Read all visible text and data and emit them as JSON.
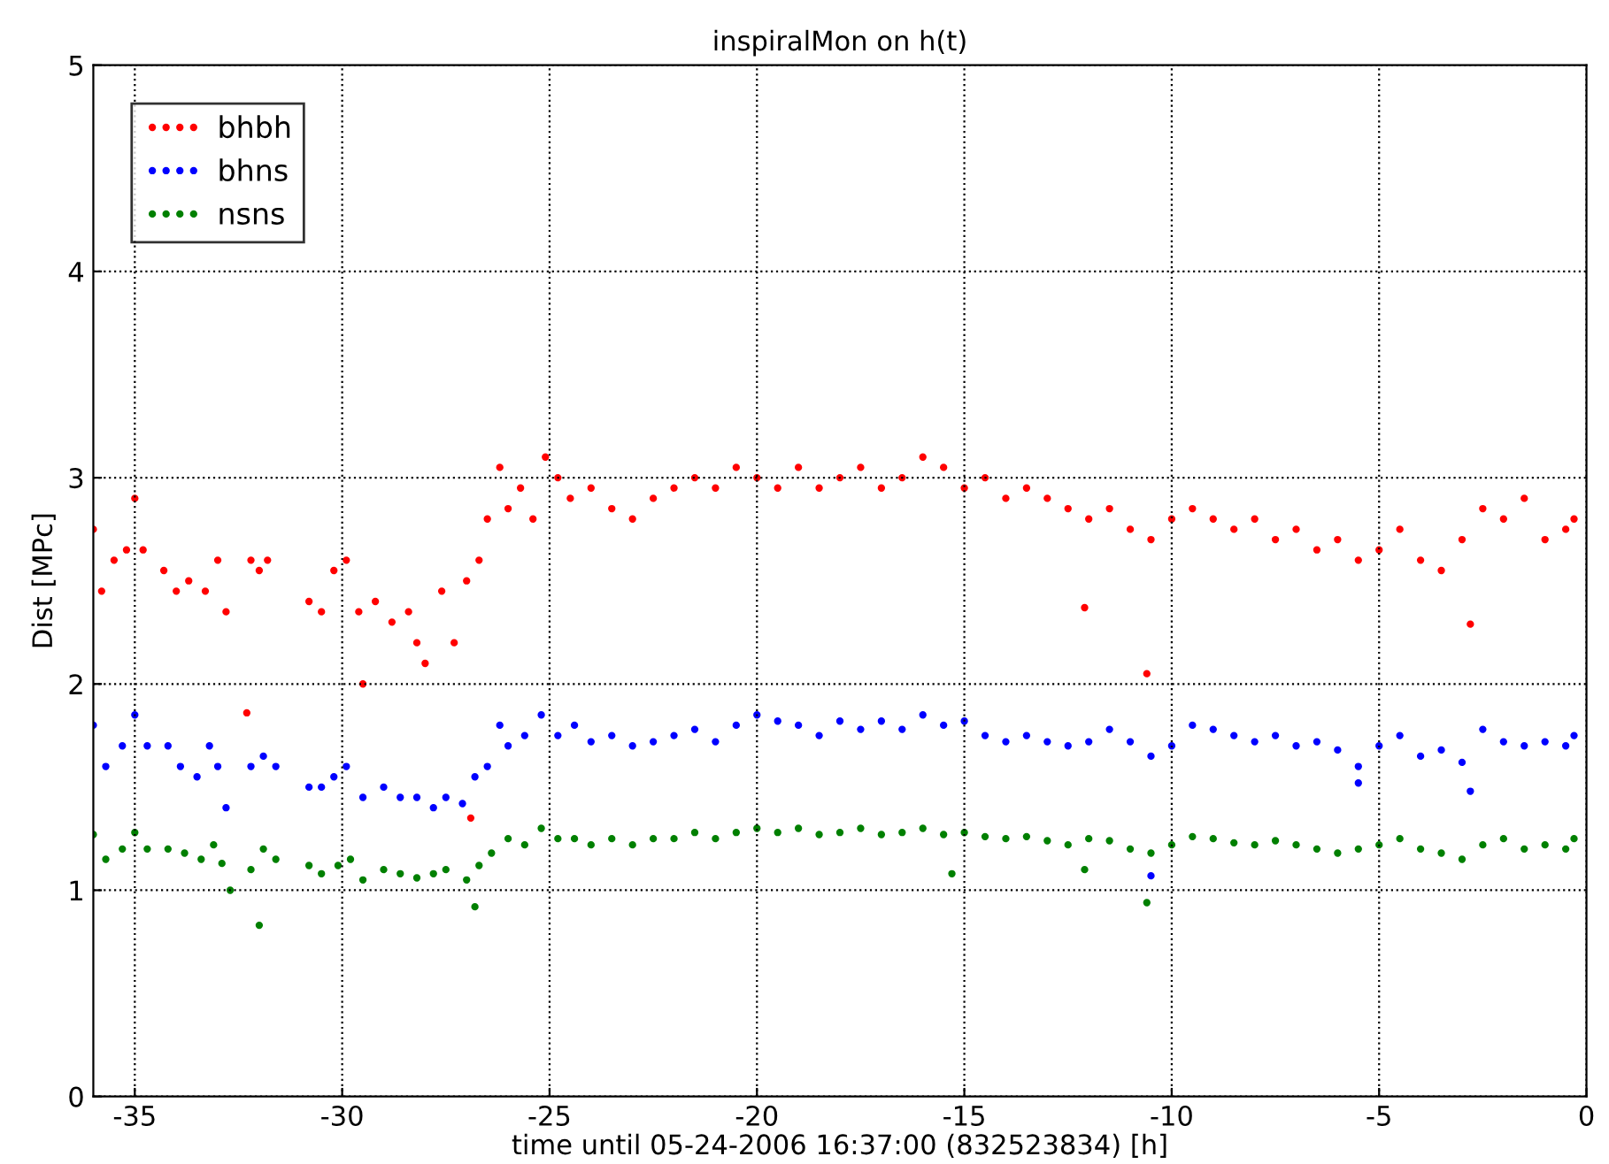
{
  "chart_data": {
    "type": "scatter",
    "title": "inspiralMon on h(t)",
    "xlabel": "time until 05-24-2006 16:37:00 (832523834) [h]",
    "ylabel": "Dist [MPc]",
    "xlim": [
      -36,
      0
    ],
    "xticks": [
      -35,
      -30,
      -25,
      -20,
      -15,
      -10,
      -5,
      0
    ],
    "ylim": [
      0,
      5
    ],
    "yticks": [
      0,
      1,
      2,
      3,
      4,
      5
    ],
    "grid": true,
    "legend": "top left",
    "marker": "circle",
    "series": [
      {
        "name": "bhbh",
        "color": "#ff0000",
        "x": [
          -36,
          -35.8,
          -35.5,
          -35.2,
          -35.0,
          -34.8,
          -34.3,
          -34.0,
          -33.7,
          -33.3,
          -33.0,
          -32.8,
          -32.3,
          -32.2,
          -32.0,
          -31.8,
          -30.8,
          -30.5,
          -30.2,
          -29.9,
          -29.6,
          -29.5,
          -29.2,
          -28.8,
          -28.4,
          -28.2,
          -28.0,
          -27.6,
          -27.3,
          -27.0,
          -26.9,
          -26.7,
          -26.5,
          -26.2,
          -26.0,
          -25.7,
          -25.4,
          -25.1,
          -24.8,
          -24.5,
          -24.0,
          -23.5,
          -23.0,
          -22.5,
          -22.0,
          -21.5,
          -21.0,
          -20.5,
          -20.0,
          -19.5,
          -19.0,
          -18.5,
          -18.0,
          -17.5,
          -17.0,
          -16.5,
          -16.0,
          -15.5,
          -15.0,
          -14.5,
          -14.0,
          -13.5,
          -13.0,
          -12.5,
          -12.1,
          -12.0,
          -11.5,
          -11.0,
          -10.6,
          -10.5,
          -10.0,
          -9.5,
          -9.0,
          -8.5,
          -8.0,
          -7.5,
          -7.0,
          -6.5,
          -6.0,
          -5.5,
          -5.0,
          -4.5,
          -4.0,
          -3.5,
          -3.0,
          -2.8,
          -2.5,
          -2.0,
          -1.5,
          -1.0,
          -0.5,
          -0.3
        ],
        "values": [
          2.75,
          2.45,
          2.6,
          2.65,
          2.9,
          2.65,
          2.55,
          2.45,
          2.5,
          2.45,
          2.6,
          2.35,
          1.86,
          2.6,
          2.55,
          2.6,
          2.4,
          2.35,
          2.55,
          2.6,
          2.35,
          2.0,
          2.4,
          2.3,
          2.35,
          2.2,
          2.1,
          2.45,
          2.2,
          2.5,
          1.35,
          2.6,
          2.8,
          3.05,
          2.85,
          2.95,
          2.8,
          3.1,
          3.0,
          2.9,
          2.95,
          2.85,
          2.8,
          2.9,
          2.95,
          3.0,
          2.95,
          3.05,
          3.0,
          2.95,
          3.05,
          2.95,
          3.0,
          3.05,
          2.95,
          3.0,
          3.1,
          3.05,
          2.95,
          3.0,
          2.9,
          2.95,
          2.9,
          2.85,
          2.37,
          2.8,
          2.85,
          2.75,
          2.05,
          2.7,
          2.8,
          2.85,
          2.8,
          2.75,
          2.8,
          2.7,
          2.75,
          2.65,
          2.7,
          2.6,
          2.65,
          2.75,
          2.6,
          2.55,
          2.7,
          2.29,
          2.85,
          2.8,
          2.9,
          2.7,
          2.75,
          2.8
        ]
      },
      {
        "name": "bhns",
        "color": "#0000ff",
        "x": [
          -36,
          -35.7,
          -35.3,
          -35.0,
          -34.7,
          -34.2,
          -33.9,
          -33.5,
          -33.2,
          -33.0,
          -32.8,
          -32.2,
          -31.9,
          -31.6,
          -30.8,
          -30.5,
          -30.2,
          -29.9,
          -29.5,
          -29.0,
          -28.6,
          -28.2,
          -27.8,
          -27.5,
          -27.1,
          -26.8,
          -26.5,
          -26.2,
          -26.0,
          -25.6,
          -25.2,
          -24.8,
          -24.4,
          -24.0,
          -23.5,
          -23.0,
          -22.5,
          -22.0,
          -21.5,
          -21.0,
          -20.5,
          -20.0,
          -19.5,
          -19.0,
          -18.5,
          -18.0,
          -17.5,
          -17.0,
          -16.5,
          -16.0,
          -15.5,
          -15.0,
          -14.5,
          -14.0,
          -13.5,
          -13.0,
          -12.5,
          -12.0,
          -11.5,
          -11.0,
          -10.5,
          -10.5,
          -10.0,
          -9.5,
          -9.0,
          -8.5,
          -8.0,
          -7.5,
          -7.0,
          -6.5,
          -6.0,
          -5.5,
          -5.5,
          -5.0,
          -4.5,
          -4.0,
          -3.5,
          -3.0,
          -2.8,
          -2.5,
          -2.0,
          -1.5,
          -1.0,
          -0.5,
          -0.3
        ],
        "values": [
          1.8,
          1.6,
          1.7,
          1.85,
          1.7,
          1.7,
          1.6,
          1.55,
          1.7,
          1.6,
          1.4,
          1.6,
          1.65,
          1.6,
          1.5,
          1.5,
          1.55,
          1.6,
          1.45,
          1.5,
          1.45,
          1.45,
          1.4,
          1.45,
          1.42,
          1.55,
          1.6,
          1.8,
          1.7,
          1.75,
          1.85,
          1.75,
          1.8,
          1.72,
          1.75,
          1.7,
          1.72,
          1.75,
          1.78,
          1.72,
          1.8,
          1.85,
          1.82,
          1.8,
          1.75,
          1.82,
          1.78,
          1.82,
          1.78,
          1.85,
          1.8,
          1.82,
          1.75,
          1.72,
          1.75,
          1.72,
          1.7,
          1.72,
          1.78,
          1.72,
          1.65,
          1.07,
          1.7,
          1.8,
          1.78,
          1.75,
          1.72,
          1.75,
          1.7,
          1.72,
          1.68,
          1.6,
          1.52,
          1.7,
          1.75,
          1.65,
          1.68,
          1.62,
          1.48,
          1.78,
          1.72,
          1.7,
          1.72,
          1.7,
          1.75
        ]
      },
      {
        "name": "nsns",
        "color": "#008000",
        "x": [
          -36,
          -35.7,
          -35.3,
          -35.0,
          -34.7,
          -34.2,
          -33.8,
          -33.4,
          -33.1,
          -32.9,
          -32.7,
          -32.2,
          -32.0,
          -31.9,
          -31.6,
          -30.8,
          -30.5,
          -30.1,
          -29.8,
          -29.5,
          -29.0,
          -28.6,
          -28.2,
          -27.8,
          -27.5,
          -27.0,
          -26.8,
          -26.7,
          -26.4,
          -26.0,
          -25.6,
          -25.2,
          -24.8,
          -24.4,
          -24.0,
          -23.5,
          -23.0,
          -22.5,
          -22.0,
          -21.5,
          -21.0,
          -20.5,
          -20.0,
          -19.5,
          -19.0,
          -18.5,
          -18.0,
          -17.5,
          -17.0,
          -16.5,
          -16.0,
          -15.5,
          -15.3,
          -15.0,
          -14.5,
          -14.0,
          -13.5,
          -13.0,
          -12.5,
          -12.1,
          -12.0,
          -11.5,
          -11.0,
          -10.6,
          -10.5,
          -10.0,
          -9.5,
          -9.0,
          -8.5,
          -8.0,
          -7.5,
          -7.0,
          -6.5,
          -6.0,
          -5.5,
          -5.0,
          -4.5,
          -4.0,
          -3.5,
          -3.0,
          -2.5,
          -2.0,
          -1.5,
          -1.0,
          -0.5,
          -0.3
        ],
        "values": [
          1.27,
          1.15,
          1.2,
          1.28,
          1.2,
          1.2,
          1.18,
          1.15,
          1.22,
          1.13,
          1.0,
          1.1,
          0.83,
          1.2,
          1.15,
          1.12,
          1.08,
          1.12,
          1.15,
          1.05,
          1.1,
          1.08,
          1.06,
          1.08,
          1.1,
          1.05,
          0.92,
          1.12,
          1.18,
          1.25,
          1.22,
          1.3,
          1.25,
          1.25,
          1.22,
          1.25,
          1.22,
          1.25,
          1.25,
          1.28,
          1.25,
          1.28,
          1.3,
          1.28,
          1.3,
          1.27,
          1.28,
          1.3,
          1.27,
          1.28,
          1.3,
          1.27,
          1.08,
          1.28,
          1.26,
          1.25,
          1.26,
          1.24,
          1.22,
          1.1,
          1.25,
          1.24,
          1.2,
          0.94,
          1.18,
          1.22,
          1.26,
          1.25,
          1.23,
          1.22,
          1.24,
          1.22,
          1.2,
          1.18,
          1.2,
          1.22,
          1.25,
          1.2,
          1.18,
          1.15,
          1.22,
          1.25,
          1.2,
          1.22,
          1.2,
          1.25
        ]
      }
    ]
  }
}
